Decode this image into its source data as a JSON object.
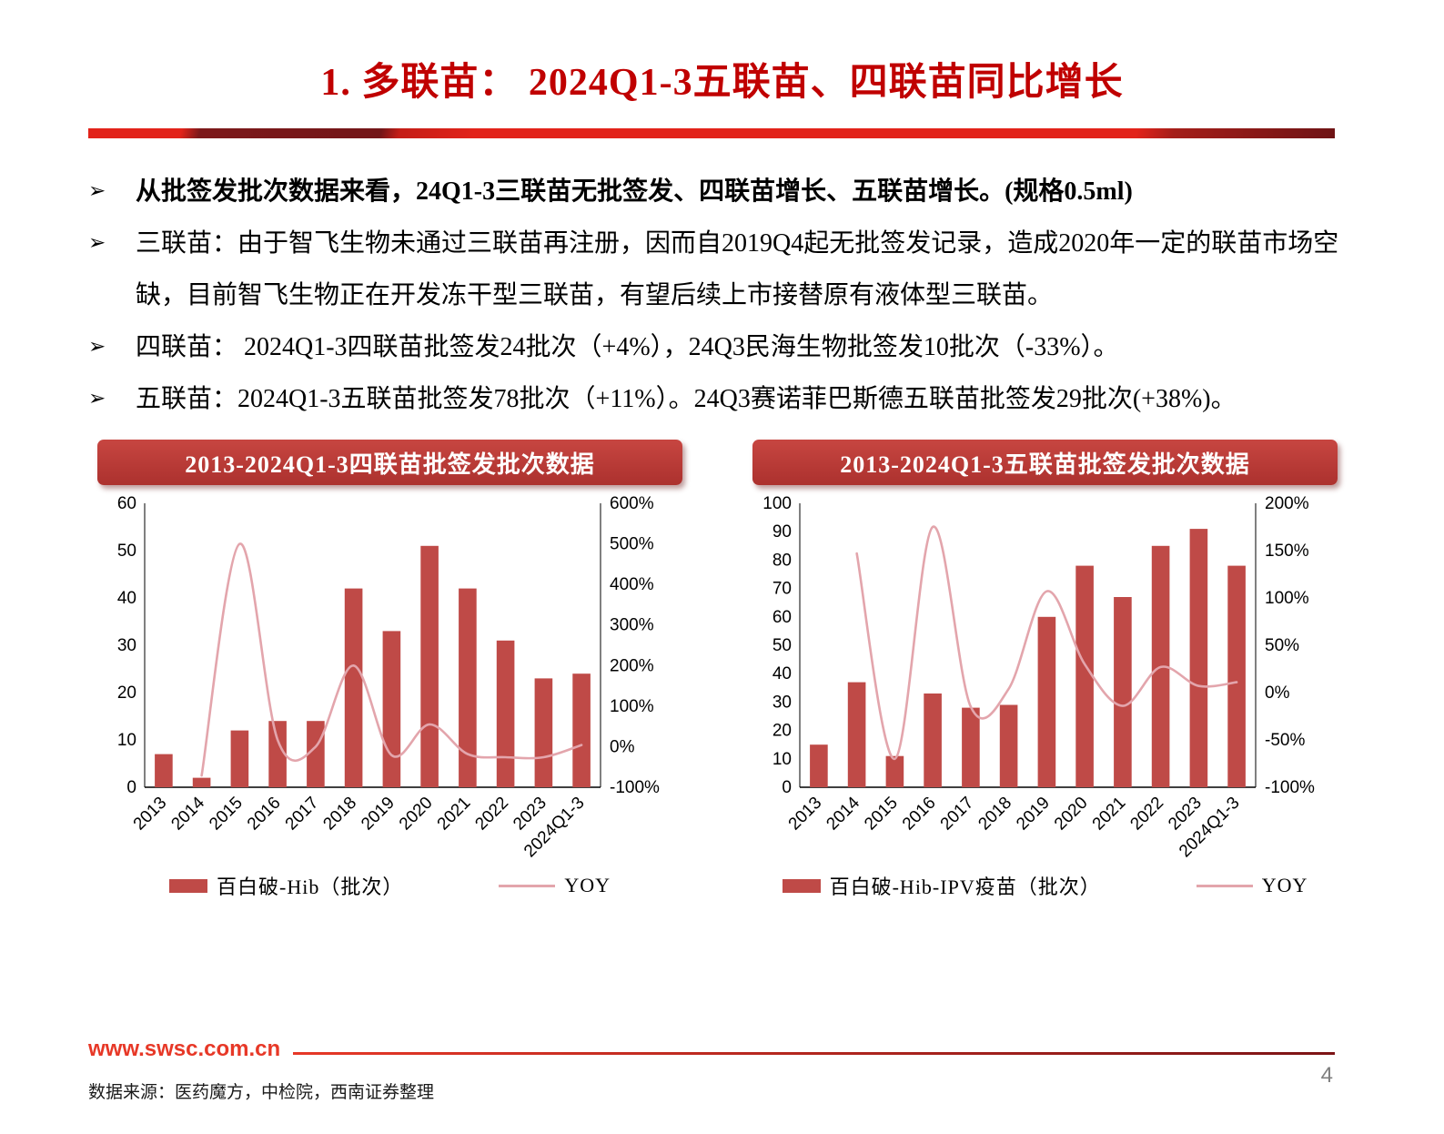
{
  "header": {
    "title": "1. 多联苗： 2024Q1-3五联苗、四联苗同比增长"
  },
  "ui": {
    "bullet_marker": "➢"
  },
  "bullets": [
    {
      "bold": true,
      "text": "从批签发批次数据来看，24Q1-3三联苗无批签发、四联苗增长、五联苗增长。(规格0.5ml)"
    },
    {
      "bold": false,
      "text": "三联苗：由于智飞生物未通过三联苗再注册，因而自2019Q4起无批签发记录，造成2020年一定的联苗市场空缺，目前智飞生物正在开发冻干型三联苗，有望后续上市接替原有液体型三联苗。"
    },
    {
      "bold": false,
      "text": "四联苗： 2024Q1-3四联苗批签发24批次（+4%），24Q3民海生物批签发10批次（-33%）。"
    },
    {
      "bold": false,
      "text": "五联苗：2024Q1-3五联苗批签发78批次（+11%）。24Q3赛诺菲巴斯德五联苗批签发29批次(+38%)。"
    }
  ],
  "chart_data": [
    {
      "type": "bar+line",
      "title": "2013-2024Q1-3四联苗批签发批次数据",
      "categories": [
        "2013",
        "2014",
        "2015",
        "2016",
        "2017",
        "2018",
        "2019",
        "2020",
        "2021",
        "2022",
        "2023",
        "2024Q1-3"
      ],
      "series": [
        {
          "name": "百白破-Hib（批次）",
          "kind": "bar",
          "axis": "left",
          "color": "#BF4A47",
          "values": [
            7,
            2,
            12,
            14,
            14,
            42,
            33,
            51,
            42,
            31,
            23,
            24
          ]
        },
        {
          "name": "YOY",
          "kind": "line",
          "axis": "right",
          "color": "#E3A5AC",
          "values": [
            null,
            -71,
            500,
            17,
            0,
            200,
            -21,
            55,
            -18,
            -26,
            -26,
            4
          ]
        }
      ],
      "left_axis": {
        "min": 0,
        "max": 60,
        "step": 10,
        "suffix": ""
      },
      "right_axis": {
        "min": -100,
        "max": 600,
        "step": 100,
        "suffix": "%"
      },
      "grid": false,
      "legend_position": "bottom"
    },
    {
      "type": "bar+line",
      "title": "2013-2024Q1-3五联苗批签发批次数据",
      "categories": [
        "2013",
        "2014",
        "2015",
        "2016",
        "2017",
        "2018",
        "2019",
        "2020",
        "2021",
        "2022",
        "2023",
        "2024Q1-3"
      ],
      "series": [
        {
          "name": "百白破-Hib-IPV疫苗（批次）",
          "kind": "bar",
          "axis": "left",
          "color": "#BF4A47",
          "values": [
            15,
            37,
            11,
            33,
            28,
            29,
            60,
            78,
            67,
            85,
            91,
            78
          ]
        },
        {
          "name": "YOY",
          "kind": "line",
          "axis": "right",
          "color": "#E3A5AC",
          "values": [
            null,
            147,
            -70,
            175,
            -15,
            4,
            107,
            30,
            -14,
            27,
            7,
            11
          ]
        }
      ],
      "left_axis": {
        "min": 0,
        "max": 100,
        "step": 10,
        "suffix": ""
      },
      "right_axis": {
        "min": -100,
        "max": 200,
        "step": 50,
        "suffix": "%"
      },
      "grid": false,
      "legend_position": "bottom"
    }
  ],
  "footer": {
    "website": "www.swsc.com.cn",
    "source": "数据来源：医药魔方，中检院，西南证券整理",
    "page_number": "4"
  },
  "colors": {
    "title_red": "#C00000",
    "banner_red": "#B93835",
    "bar_red": "#BF4A47",
    "yoy_pink": "#E3A5AC",
    "divider_bright": "#E2231A",
    "divider_dark": "#6E1315",
    "footer_red": "#E73827"
  }
}
